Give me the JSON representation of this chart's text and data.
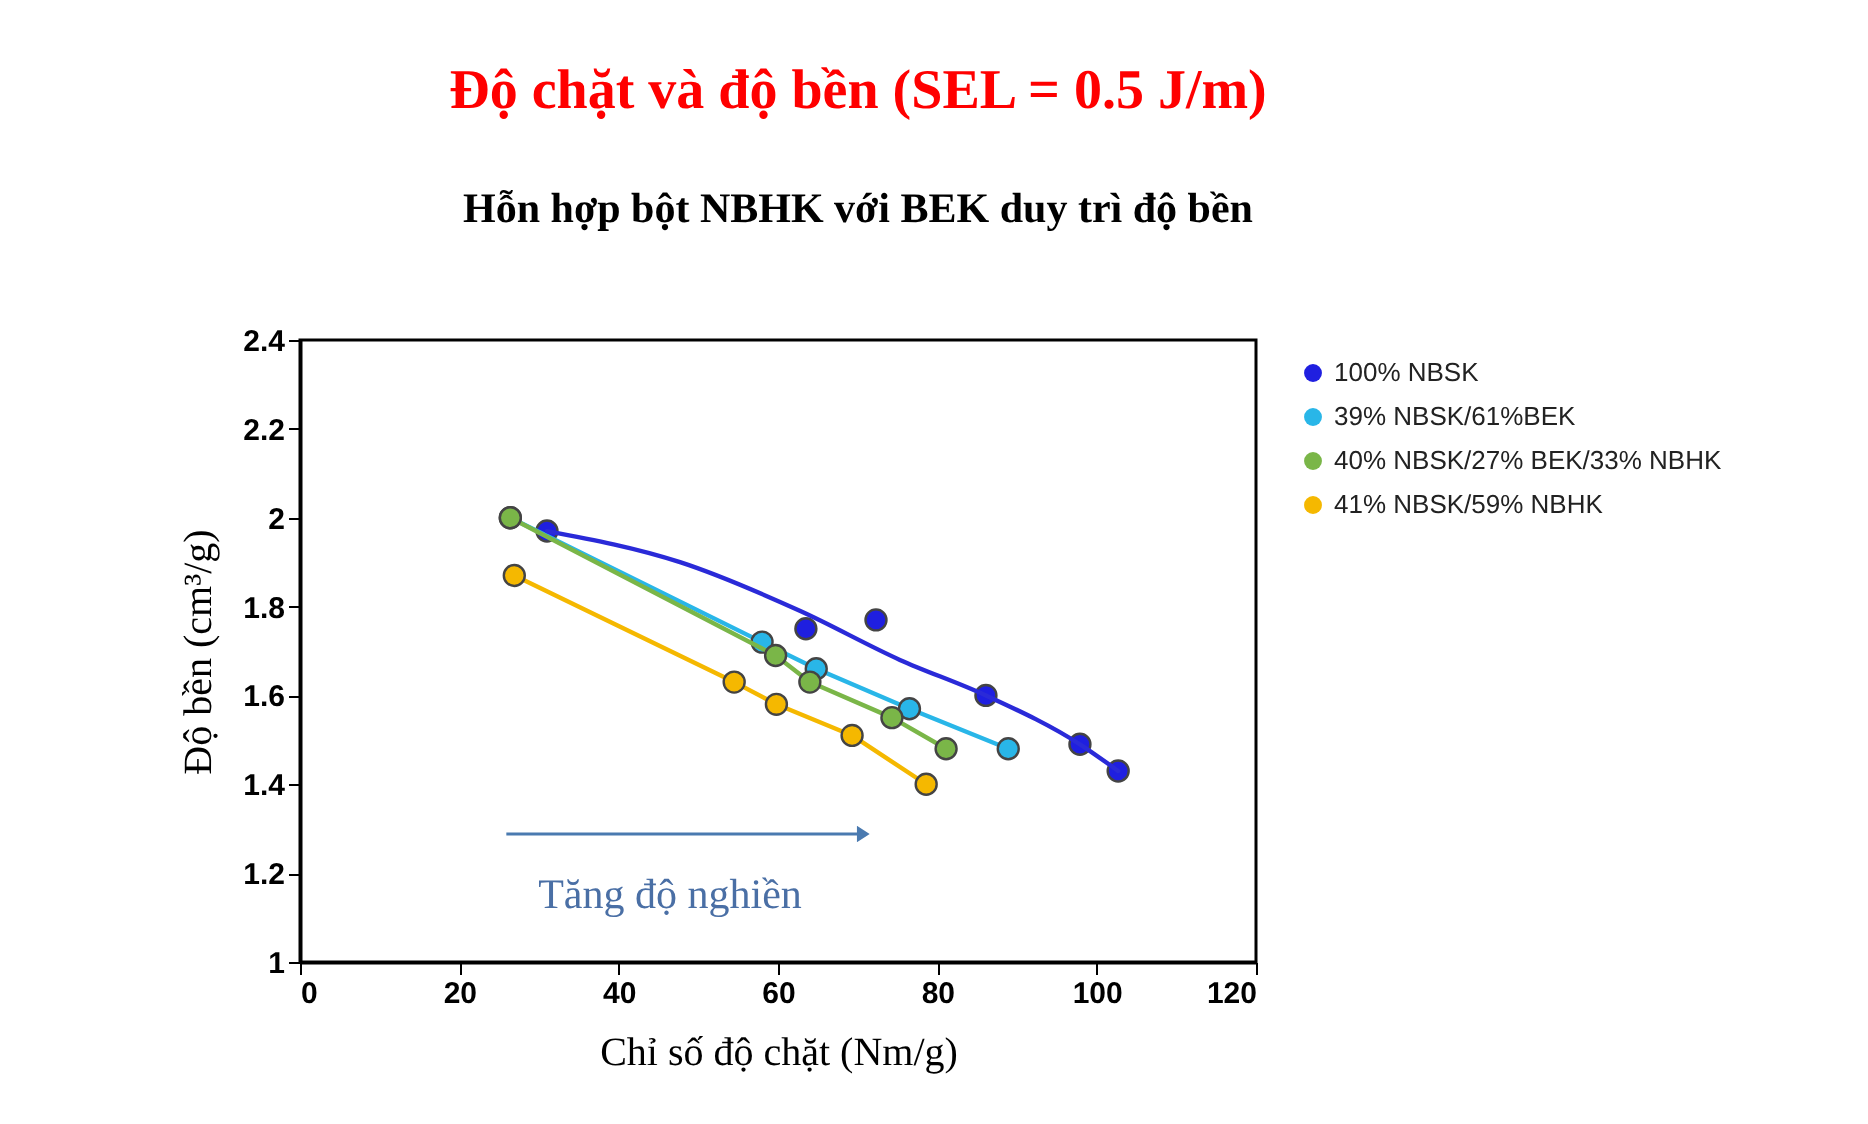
{
  "chart_data": {
    "type": "line",
    "title": "Độ chặt và độ bền (SEL = 0.5 J/m)",
    "subtitle": "Hỗn hợp bột NBHK với BEK duy trì độ bền",
    "xlabel": "Chỉ số độ chặt (Nm/g)",
    "ylabel": "Độ bền (cm³/g)",
    "annotations": [
      "Tăng độ nghiền"
    ],
    "xlim": [
      0,
      120
    ],
    "xticks": [
      0,
      20,
      40,
      60,
      80,
      100,
      120
    ],
    "ylim": [
      1,
      2.4
    ],
    "yticks": [
      1,
      1.2,
      1.4,
      1.6,
      1.8,
      2,
      2.2,
      2.4
    ],
    "grid": false,
    "legend": "right",
    "marker": "circle",
    "line_style": "solid",
    "series": [
      {
        "name": "100% NBSK",
        "type": "scatter",
        "color": "#1f1fe0",
        "x": [
          31,
          63.5,
          72.3,
          86.1,
          97.9,
          102.7
        ],
        "values": [
          1.97,
          1.75,
          1.77,
          1.6,
          1.49,
          1.43
        ]
      },
      {
        "name": "39% NBSK/61%BEK",
        "color": "#29b6e8",
        "x": [
          26.4,
          58,
          64.8,
          76.5,
          88.9
        ],
        "values": [
          2.0,
          1.72,
          1.66,
          1.57,
          1.48
        ]
      },
      {
        "name": "40% NBSK/27% BEK/33% NBHK",
        "color": "#7ab648",
        "x": [
          26.4,
          59.7,
          64,
          74.3,
          81.1
        ],
        "values": [
          2.0,
          1.69,
          1.63,
          1.55,
          1.48
        ]
      },
      {
        "name": "41% NBSK/59% NBHK",
        "color": "#f5b800",
        "x": [
          26.9,
          54.5,
          59.8,
          69.3,
          78.6
        ],
        "values": [
          1.87,
          1.63,
          1.58,
          1.51,
          1.4
        ]
      },
      {
        "type": "line",
        "marker": "none",
        "color": "#2a2ad8",
        "x": [
          31,
          47.7,
          62.8,
          75.3,
          86.1,
          97.9,
          102.7
        ],
        "values": [
          1.97,
          1.9,
          1.79,
          1.68,
          1.6,
          1.49,
          1.43
        ]
      }
    ]
  }
}
